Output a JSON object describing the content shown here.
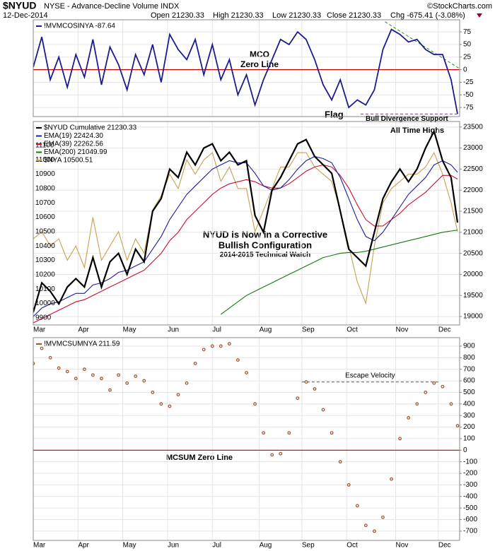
{
  "header": {
    "symbol": "$NYUD",
    "description": "NYSE - Advance-Decline Volume INDX",
    "source": "©StockCharts.com",
    "date": "12-Dec-2014",
    "open": "Open 21230.33",
    "high": "High 21230.33",
    "low": "Low 21230.33",
    "close": "Close 21230.33",
    "change": "Chg -675.41 (-3.08%)"
  },
  "chart_data": [
    {
      "type": "line",
      "xlim": [
        0,
        200
      ],
      "ylim": [
        -93,
        99
      ],
      "yticks": [
        -75,
        -50,
        -25,
        0,
        25,
        50,
        75
      ],
      "zero_line_color": "#cc0000",
      "x": [
        0,
        4,
        8,
        12,
        16,
        20,
        24,
        28,
        32,
        36,
        40,
        44,
        48,
        52,
        56,
        60,
        64,
        68,
        72,
        76,
        80,
        84,
        88,
        92,
        96,
        100,
        104,
        108,
        112,
        116,
        120,
        124,
        128,
        132,
        136,
        140,
        144,
        148,
        152,
        156,
        160,
        164,
        168,
        172,
        176,
        180,
        184,
        188,
        192,
        196,
        199
      ],
      "series": [
        {
          "name": "!MVMCOSINYA -87.64",
          "color": "#1c1c8c",
          "values": [
            5,
            65,
            -20,
            25,
            -35,
            30,
            -15,
            60,
            -30,
            45,
            10,
            -40,
            30,
            -10,
            50,
            -25,
            70,
            40,
            20,
            60,
            -10,
            50,
            -20,
            20,
            -50,
            -10,
            -70,
            -20,
            20,
            60,
            50,
            75,
            60,
            20,
            -30,
            -60,
            -20,
            -75,
            -60,
            -70,
            -40,
            40,
            80,
            70,
            55,
            60,
            40,
            30,
            30,
            -20,
            -87.64
          ]
        }
      ],
      "trendline": {
        "x": [
          165,
          200
        ],
        "values": [
          95,
          2
        ],
        "color": "#2a8a2a"
      },
      "support": {
        "text": "Bull Divergence Support",
        "value": -88,
        "color": "#d000d0"
      },
      "annotations": [
        "MCO",
        "Zero Line",
        "Flag"
      ]
    },
    {
      "type": "line",
      "xlim": [
        0,
        200
      ],
      "ylim": [
        18800,
        23630
      ],
      "yticks": [
        19000,
        19500,
        20000,
        20500,
        21000,
        21500,
        22000,
        22500,
        23000,
        23500
      ],
      "y2lim": [
        9850,
        11267
      ],
      "y2ticks": [
        9900,
        10000,
        10100,
        10200,
        10300,
        10400,
        10500,
        10600,
        10700,
        10800,
        10900,
        11000,
        11100
      ],
      "xticks": [
        {
          "value": 0,
          "label": "Mar"
        },
        {
          "value": 21,
          "label": "Apr"
        },
        {
          "value": 42,
          "label": "May"
        },
        {
          "value": 63,
          "label": "Jun"
        },
        {
          "value": 84,
          "label": "Jul"
        },
        {
          "value": 106,
          "label": "Aug"
        },
        {
          "value": 126,
          "label": "Sep"
        },
        {
          "value": 147,
          "label": "Oct"
        },
        {
          "value": 170,
          "label": "Nov"
        },
        {
          "value": 190,
          "label": "Dec"
        }
      ],
      "x": [
        0,
        4,
        8,
        12,
        16,
        20,
        24,
        28,
        32,
        36,
        40,
        44,
        48,
        52,
        56,
        60,
        64,
        68,
        72,
        76,
        80,
        84,
        88,
        92,
        96,
        100,
        104,
        108,
        112,
        116,
        120,
        124,
        128,
        132,
        136,
        140,
        144,
        148,
        152,
        156,
        160,
        164,
        168,
        172,
        176,
        180,
        184,
        188,
        192,
        196,
        199
      ],
      "series": [
        {
          "name": "$NYA 10500.51",
          "color": "#c8a050",
          "axis": "y2",
          "values": [
            10450,
            10500,
            10400,
            10450,
            10300,
            10400,
            10250,
            10600,
            10300,
            10400,
            10500,
            10300,
            10450,
            10350,
            10650,
            10750,
            10900,
            10800,
            11000,
            10900,
            11000,
            11050,
            10850,
            10950,
            10800,
            10800,
            10500,
            10650,
            10800,
            10950,
            10950,
            11050,
            11050,
            10950,
            10900,
            10850,
            10650,
            10400,
            10150,
            10000,
            10400,
            10700,
            10800,
            10850,
            10900,
            10900,
            10950,
            11050,
            10900,
            10700,
            10500.51
          ]
        },
        {
          "name": "EMA(200) 21049.99",
          "color": "#137a13",
          "values": [
            null,
            null,
            null,
            null,
            null,
            null,
            null,
            null,
            null,
            null,
            null,
            null,
            null,
            null,
            null,
            null,
            null,
            null,
            null,
            null,
            null,
            null,
            19050,
            19200,
            19350,
            19500,
            19600,
            19700,
            19800,
            19900,
            20000,
            20100,
            20200,
            20300,
            20400,
            20450,
            20500,
            20520,
            20520,
            20550,
            20600,
            20650,
            20700,
            20750,
            20800,
            20850,
            20900,
            20950,
            21000,
            21030,
            21049.99
          ]
        },
        {
          "name": "EMA(39) 22262.56",
          "color": "#cc1030",
          "values": [
            18850,
            18950,
            19050,
            19150,
            19250,
            19350,
            19400,
            19500,
            19600,
            19700,
            19800,
            19900,
            20000,
            20100,
            20300,
            20500,
            20800,
            21000,
            21300,
            21500,
            21700,
            21900,
            22050,
            22150,
            22200,
            22250,
            22200,
            22100,
            22050,
            22050,
            22150,
            22300,
            22450,
            22550,
            22600,
            22550,
            22350,
            22050,
            21650,
            21300,
            21150,
            21150,
            21300,
            21450,
            21650,
            21800,
            21950,
            22150,
            22350,
            22350,
            22262.56
          ]
        },
        {
          "name": "EMA(19) 22424.30",
          "color": "#1c1c9c",
          "values": [
            19000,
            19200,
            19300,
            19350,
            19450,
            19550,
            19550,
            19750,
            19800,
            19900,
            20050,
            20100,
            20200,
            20300,
            20600,
            20900,
            21300,
            21600,
            21900,
            22100,
            22300,
            22500,
            22600,
            22700,
            22650,
            22650,
            22400,
            22100,
            22000,
            22050,
            22250,
            22500,
            22700,
            22800,
            22750,
            22650,
            22300,
            21800,
            21300,
            20900,
            20800,
            21000,
            21300,
            21600,
            21900,
            22100,
            22300,
            22600,
            22700,
            22600,
            22424.3
          ]
        },
        {
          "name": "$NYUD Cumulative 21230.33",
          "color": "#000000",
          "values": [
            19100,
            19800,
            19600,
            19300,
            19700,
            19900,
            19700,
            20400,
            19700,
            20300,
            20500,
            20000,
            20600,
            20300,
            21500,
            21800,
            22500,
            22300,
            22900,
            22600,
            23000,
            23100,
            22700,
            22900,
            22600,
            22700,
            21400,
            21000,
            22000,
            22300,
            22700,
            23100,
            23200,
            22800,
            22600,
            22400,
            21500,
            20600,
            20400,
            20200,
            21000,
            21800,
            22200,
            22500,
            22200,
            22500,
            23000,
            23400,
            22700,
            22300,
            21230.33
          ]
        }
      ],
      "annotations": [
        "All Time Highs",
        "NYUD is Now in a Corrective",
        "Bullish Configuration",
        "2014-2015 Technical Watch"
      ]
    },
    {
      "type": "scatter",
      "xlim": [
        0,
        200
      ],
      "ylim": [
        -780,
        973
      ],
      "yticks": [
        -700,
        -600,
        -500,
        -400,
        -300,
        -200,
        -100,
        0,
        100,
        200,
        300,
        400,
        500,
        600,
        700,
        800,
        900
      ],
      "zero_line_color": "#cc0000",
      "xticks": [
        {
          "value": 0,
          "label": "Mar"
        },
        {
          "value": 21,
          "label": "Apr"
        },
        {
          "value": 42,
          "label": "May"
        },
        {
          "value": 63,
          "label": "Jun"
        },
        {
          "value": 84,
          "label": "Jul"
        },
        {
          "value": 106,
          "label": "Aug"
        },
        {
          "value": 126,
          "label": "Sep"
        },
        {
          "value": 147,
          "label": "Oct"
        },
        {
          "value": 170,
          "label": "Nov"
        },
        {
          "value": 190,
          "label": "Dec"
        }
      ],
      "x": [
        0,
        4,
        8,
        12,
        16,
        20,
        24,
        28,
        32,
        36,
        40,
        44,
        48,
        52,
        56,
        60,
        64,
        68,
        72,
        76,
        80,
        84,
        88,
        92,
        96,
        100,
        104,
        108,
        112,
        116,
        120,
        124,
        128,
        132,
        136,
        140,
        144,
        148,
        152,
        156,
        160,
        164,
        168,
        172,
        176,
        180,
        184,
        188,
        192,
        196,
        199
      ],
      "series": [
        {
          "name": "!MVMCSUMNYA 211.59",
          "color": "#a0522d",
          "values": [
            750,
            880,
            800,
            710,
            680,
            620,
            700,
            650,
            620,
            520,
            650,
            580,
            640,
            600,
            500,
            400,
            380,
            480,
            580,
            750,
            870,
            900,
            900,
            920,
            780,
            670,
            400,
            150,
            -40,
            -30,
            150,
            450,
            590,
            530,
            350,
            150,
            -100,
            -300,
            -480,
            -650,
            -700,
            -580,
            -250,
            100,
            280,
            400,
            500,
            580,
            550,
            400,
            211.59
          ]
        }
      ],
      "level": {
        "text": "Escape Velocity",
        "value": 590,
        "x": [
          126,
          190
        ]
      },
      "annotations": [
        "MCSUM Zero Line"
      ]
    }
  ]
}
